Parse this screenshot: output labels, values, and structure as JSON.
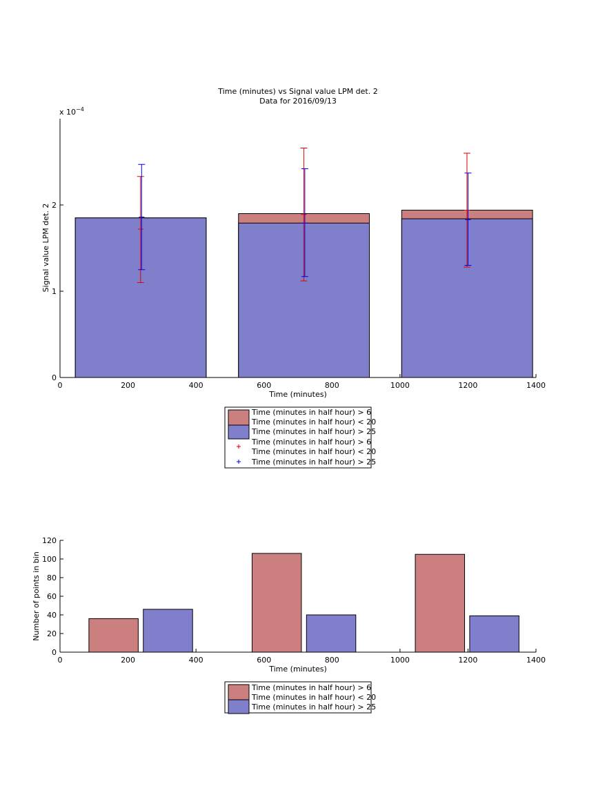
{
  "colors": {
    "red_fill": "#cc7f7f",
    "blue_fill": "#7f7fcc",
    "red_err": "#e00000",
    "blue_err": "#0000e0",
    "edge": "#000000"
  },
  "chart_data": [
    {
      "type": "bar",
      "title": "Time (minutes) vs Signal value LPM det. 2",
      "subtitle": "Data for 2016/09/13",
      "xlabel": "Time (minutes)",
      "ylabel": "Signal value LPM det. 2",
      "y_exponent_label": "x 10^-4",
      "y_exponent_base": "x 10",
      "y_exponent_power": "−4",
      "xlim": [
        0,
        1400
      ],
      "ylim": [
        0,
        3
      ],
      "x_ticks": [
        0,
        200,
        400,
        600,
        800,
        1000,
        1200,
        1400
      ],
      "y_ticks": [
        0,
        1,
        2
      ],
      "bar_edges": [
        [
          45,
          430
        ],
        [
          525,
          910
        ],
        [
          1005,
          1390
        ]
      ],
      "series": [
        {
          "name": "Time (minutes in half hour) > 6\nTime (minutes in half hour) < 20",
          "color": "red",
          "values": [
            1.85,
            1.9,
            1.94
          ]
        },
        {
          "name": "Time (minutes in half hour) > 25",
          "color": "blue",
          "values": [
            1.85,
            1.79,
            1.84
          ]
        }
      ],
      "error_bars": [
        {
          "name": "Time (minutes in half hour) > 6\nTime (minutes in half hour) < 20",
          "color": "red",
          "x": [
            237,
            717,
            1197
          ],
          "low": [
            1.1,
            1.12,
            1.28
          ],
          "high": [
            2.33,
            2.66,
            2.6
          ],
          "center": [
            1.72,
            1.89,
            1.94
          ]
        },
        {
          "name": "Time (minutes in half hour) > 25",
          "color": "blue",
          "x": [
            240,
            720,
            1200
          ],
          "low": [
            1.25,
            1.17,
            1.3
          ],
          "high": [
            2.47,
            2.42,
            2.37
          ],
          "center": [
            1.86,
            1.79,
            1.83
          ]
        }
      ],
      "legend": {
        "placement": "below",
        "entries": [
          {
            "kind": "patch",
            "color": "red",
            "lines": [
              "Time (minutes in half hour) > 6",
              "Time (minutes in half hour) < 20"
            ]
          },
          {
            "kind": "patch",
            "color": "blue",
            "lines": [
              "Time (minutes in half hour) > 25"
            ]
          },
          {
            "kind": "marker",
            "color": "red",
            "lines": [
              "Time (minutes in half hour) > 6",
              "Time (minutes in half hour) < 20"
            ]
          },
          {
            "kind": "marker",
            "color": "blue",
            "lines": [
              "Time (minutes in half hour) > 25"
            ]
          }
        ]
      }
    },
    {
      "type": "bar",
      "xlabel": "Time (minutes)",
      "ylabel": "Number of points in bin",
      "xlim": [
        0,
        1400
      ],
      "ylim": [
        0,
        120
      ],
      "x_ticks": [
        0,
        200,
        400,
        600,
        800,
        1000,
        1200,
        1400
      ],
      "y_ticks": [
        0,
        20,
        40,
        60,
        80,
        100,
        120
      ],
      "series": [
        {
          "name": "Time (minutes in half hour) > 6\nTime (minutes in half hour) < 20",
          "color": "red",
          "bars": [
            [
              85,
              230,
              36
            ],
            [
              565,
              710,
              106
            ],
            [
              1045,
              1190,
              105
            ]
          ]
        },
        {
          "name": "Time (minutes in half hour) > 25",
          "color": "blue",
          "bars": [
            [
              245,
              390,
              46
            ],
            [
              725,
              870,
              40
            ],
            [
              1205,
              1350,
              39
            ]
          ]
        }
      ],
      "legend": {
        "placement": "below",
        "entries": [
          {
            "kind": "patch",
            "color": "red",
            "lines": [
              "Time (minutes in half hour) > 6",
              "Time (minutes in half hour) < 20"
            ]
          },
          {
            "kind": "patch",
            "color": "blue",
            "lines": [
              "Time (minutes in half hour) > 25"
            ]
          }
        ]
      }
    }
  ]
}
